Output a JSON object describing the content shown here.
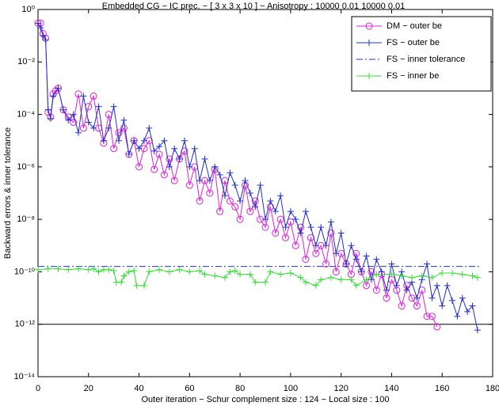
{
  "chart_data": {
    "type": "line",
    "title": "Embedded CG − IC prec. − [ 3 x 3 x 10 ] − Anisotropy : 10000 0.01 10000 0.01",
    "xlabel": "Outer iteration − Schur complement size : 124 − Local size : 100",
    "ylabel": "Backward errors & inner tolerance",
    "xlim": [
      0,
      180
    ],
    "xticks": [
      0,
      20,
      40,
      60,
      80,
      100,
      120,
      140,
      160,
      180
    ],
    "ylim": [
      1e-14,
      1
    ],
    "log_y": true,
    "yticks": [
      {
        "value": 1,
        "label": "10⁰"
      },
      {
        "value": 0.01,
        "label": "10⁻²"
      },
      {
        "value": 0.0001,
        "label": "10⁻⁴"
      },
      {
        "value": 1e-06,
        "label": "10⁻⁶"
      },
      {
        "value": 1e-08,
        "label": "10⁻⁸"
      },
      {
        "value": 1e-10,
        "label": "10⁻¹⁰"
      },
      {
        "value": 1e-12,
        "label": "10⁻¹²"
      },
      {
        "value": 1e-14,
        "label": "10⁻¹⁴"
      }
    ],
    "reference_line": {
      "value": 1e-12,
      "color": "#000000"
    },
    "legend": "upper right",
    "series": [
      {
        "name": "DM − outer be",
        "color": "#e020e0",
        "marker": "circle",
        "dash": "solid",
        "x": [
          0,
          1,
          2,
          3,
          4,
          5,
          6,
          7,
          8,
          10,
          12,
          14,
          16,
          18,
          20,
          22,
          24,
          26,
          28,
          30,
          32,
          34,
          36,
          38,
          40,
          42,
          44,
          46,
          48,
          50,
          52,
          54,
          56,
          58,
          60,
          62,
          64,
          66,
          68,
          70,
          72,
          74,
          76,
          78,
          80,
          82,
          84,
          86,
          88,
          90,
          92,
          94,
          96,
          98,
          100,
          102,
          104,
          106,
          108,
          110,
          112,
          114,
          116,
          118,
          120,
          122,
          124,
          126,
          128,
          130,
          132,
          134,
          136,
          138,
          140,
          142,
          144,
          146,
          148,
          150,
          152,
          154,
          156,
          158
        ],
        "values": [
          0.3,
          0.3,
          0.12,
          0.08,
          0.00012,
          8e-05,
          0.0006,
          0.0008,
          0.001,
          0.00015,
          8e-05,
          5e-05,
          0.0006,
          3e-05,
          0.0002,
          0.0005,
          3e-05,
          8e-06,
          0.0001,
          5e-06,
          2e-05,
          3e-05,
          3e-06,
          1e-05,
          1e-06,
          5e-06,
          1e-05,
          8e-07,
          3e-06,
          5e-07,
          2e-06,
          3e-07,
          2e-06,
          4e-06,
          2e-07,
          1e-06,
          5e-08,
          3e-07,
          1e-07,
          8e-07,
          2e-08,
          3e-07,
          5e-08,
          3e-08,
          1e-08,
          2e-07,
          2e-08,
          5e-08,
          1e-08,
          5e-09,
          3e-08,
          3e-09,
          1e-08,
          2e-09,
          8e-09,
          1e-09,
          5e-09,
          3e-10,
          2e-09,
          5e-10,
          1e-09,
          2e-10,
          3e-09,
          1e-10,
          5e-10,
          2e-10,
          8e-11,
          5e-10,
          1e-10,
          3e-11,
          1e-10,
          2e-11,
          8e-11,
          1e-11,
          5e-11,
          2e-11,
          5e-12,
          3e-11,
          1e-11,
          5e-12,
          2e-11,
          2e-12,
          2e-12,
          8e-13
        ]
      },
      {
        "name": "FS − outer be",
        "color": "#2030d0",
        "marker": "plus",
        "dash": "solid",
        "x": [
          0,
          1,
          2,
          3,
          4,
          5,
          6,
          8,
          10,
          12,
          14,
          16,
          18,
          20,
          22,
          24,
          26,
          28,
          30,
          32,
          34,
          36,
          38,
          40,
          42,
          44,
          46,
          48,
          50,
          52,
          54,
          56,
          58,
          60,
          62,
          64,
          66,
          68,
          70,
          72,
          74,
          76,
          78,
          80,
          82,
          84,
          86,
          88,
          90,
          92,
          94,
          96,
          98,
          100,
          102,
          104,
          106,
          108,
          110,
          112,
          114,
          116,
          118,
          120,
          122,
          124,
          126,
          128,
          130,
          132,
          134,
          136,
          138,
          140,
          142,
          144,
          146,
          148,
          150,
          152,
          154,
          156,
          158,
          160,
          162,
          164,
          166,
          168,
          170,
          172,
          174
        ],
        "values": [
          0.3,
          0.2,
          0.1,
          0.07,
          0.00015,
          7e-05,
          0.0005,
          0.001,
          0.00015,
          6e-05,
          0.0001,
          2e-05,
          0.0005,
          5e-05,
          3e-05,
          0.0002,
          1e-05,
          3e-05,
          0.0002,
          1e-05,
          6e-05,
          3e-06,
          1e-05,
          5e-06,
          1e-05,
          3e-05,
          4e-06,
          6e-06,
          1e-05,
          1e-06,
          5e-06,
          2e-06,
          1e-05,
          1e-06,
          5e-06,
          3e-07,
          2e-06,
          3e-07,
          1e-06,
          5e-07,
          8e-08,
          6e-07,
          2e-07,
          5e-08,
          3e-07,
          1e-07,
          3e-08,
          2e-07,
          1e-08,
          5e-08,
          2e-08,
          8e-08,
          5e-09,
          2e-08,
          1e-08,
          3e-09,
          2e-08,
          5e-09,
          1e-09,
          5e-09,
          1e-09,
          8e-09,
          5e-10,
          3e-09,
          2e-10,
          1e-09,
          3e-10,
          1e-10,
          4e-10,
          5e-11,
          3e-10,
          1e-10,
          2e-11,
          2e-10,
          3e-11,
          1e-10,
          2e-11,
          4e-11,
          1e-11,
          5e-11,
          2e-10,
          1e-11,
          3e-11,
          5e-12,
          3e-11,
          8e-12,
          2e-12,
          1e-11,
          3e-12,
          5e-12,
          6e-13
        ]
      },
      {
        "name": "FS − inner tolerance",
        "color": "#2030d0",
        "marker": "none",
        "dash": "dashdot",
        "x": [
          0,
          175
        ],
        "values": [
          1.6e-10,
          1.6e-10
        ]
      },
      {
        "name": "FS − inner be",
        "color": "#30e030",
        "marker": "plus",
        "dash": "solid",
        "x": [
          0,
          4,
          8,
          12,
          16,
          20,
          22,
          24,
          26,
          28,
          30,
          31,
          33,
          34,
          36,
          38,
          39,
          42,
          44,
          48,
          52,
          56,
          60,
          64,
          66,
          70,
          74,
          76,
          78,
          80,
          84,
          86,
          90,
          92,
          96,
          100,
          104,
          106,
          110,
          112,
          116,
          120,
          124,
          126,
          130,
          134,
          140,
          144,
          148,
          152,
          156,
          160,
          164,
          168,
          172,
          174
        ],
        "values": [
          1.2e-10,
          1.3e-10,
          1.3e-10,
          1.2e-10,
          1.3e-10,
          1.2e-10,
          1.3e-10,
          1e-10,
          1.2e-10,
          1.2e-10,
          1.1e-10,
          4e-11,
          4e-11,
          7e-11,
          1e-10,
          1.1e-10,
          3e-11,
          3e-11,
          1e-10,
          1.2e-10,
          1e-10,
          1.2e-10,
          1e-10,
          1.1e-10,
          8e-11,
          7e-11,
          6e-11,
          1e-10,
          1.1e-10,
          8e-11,
          8e-11,
          4e-11,
          4e-11,
          1e-10,
          8e-11,
          9e-11,
          6e-11,
          4e-11,
          3e-11,
          5e-11,
          6e-11,
          5e-11,
          5e-11,
          3e-11,
          5e-11,
          8e-11,
          8e-11,
          7e-11,
          6e-11,
          7e-11,
          6e-11,
          9e-11,
          9e-11,
          8e-11,
          7e-11,
          6e-11
        ]
      }
    ]
  }
}
